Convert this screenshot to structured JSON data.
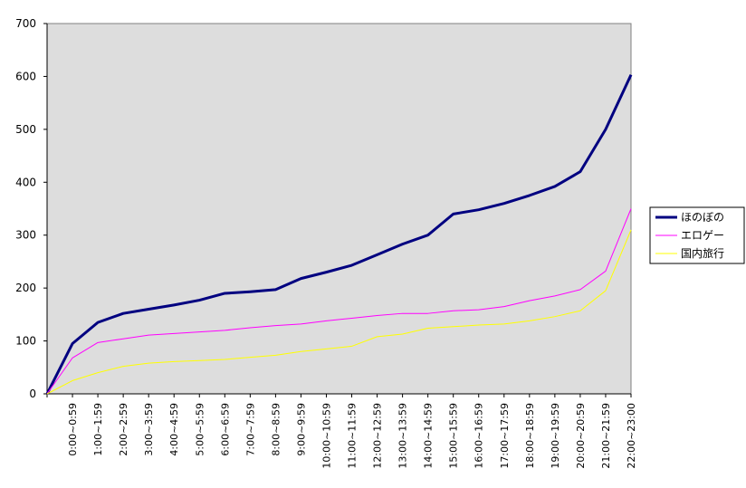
{
  "chart_data": {
    "type": "line",
    "categories": [
      null,
      "0:00~0:59",
      "1:00~1:59",
      "2:00~2:59",
      "3:00~3:59",
      "4:00~4:59",
      "5:00~5:59",
      "6:00~6:59",
      "7:00~7:59",
      "8:00~8:59",
      "9:00~9:59",
      "10:00~10:59",
      "11:00~11:59",
      "12:00~12:59",
      "13:00~13:59",
      "14:00~14:59",
      "15:00~15:59",
      "16:00~16:59",
      "17:00~17:59",
      "18:00~18:59",
      "19:00~19:59",
      "20:00~20:59",
      "21:00~21:59",
      "22:00~23:00"
    ],
    "series": [
      {
        "name": "ほのぼの",
        "color": "#000080",
        "width": 3,
        "values": [
          0,
          95,
          135,
          152,
          160,
          168,
          177,
          190,
          193,
          197,
          218,
          230,
          243,
          263,
          283,
          300,
          340,
          348,
          360,
          375,
          392,
          420,
          500,
          603
        ]
      },
      {
        "name": "エロゲー",
        "color": "#ff00ff",
        "width": 1,
        "values": [
          0,
          68,
          97,
          104,
          111,
          114,
          117,
          120,
          125,
          129,
          132,
          138,
          143,
          148,
          152,
          152,
          157,
          159,
          165,
          176,
          185,
          197,
          232,
          350
        ]
      },
      {
        "name": "国内旅行",
        "color": "#ffff00",
        "width": 1,
        "values": [
          0,
          25,
          40,
          52,
          58,
          61,
          63,
          65,
          69,
          73,
          80,
          85,
          90,
          108,
          113,
          124,
          127,
          130,
          132,
          138,
          146,
          157,
          195,
          310
        ]
      }
    ],
    "ylim": [
      0,
      700
    ],
    "yticks": [
      0,
      100,
      200,
      300,
      400,
      500,
      600,
      700
    ],
    "plot_background": "#dddddd",
    "legend": "right"
  }
}
